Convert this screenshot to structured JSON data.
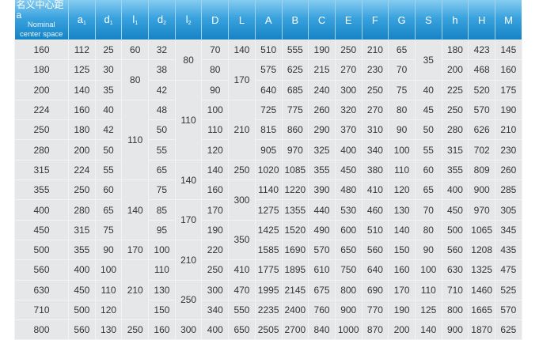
{
  "table": {
    "header": {
      "first": {
        "zh": "名义中心距a",
        "en1": "Nominal",
        "en2": "center space"
      },
      "columns": [
        {
          "base": "a",
          "sub": "1"
        },
        {
          "base": "d",
          "sub": "1"
        },
        {
          "base": "l",
          "sub": "1"
        },
        {
          "base": "d",
          "sub": "2"
        },
        {
          "base": "l",
          "sub": "2"
        },
        {
          "base": "D",
          "sub": ""
        },
        {
          "base": "L",
          "sub": ""
        },
        {
          "base": "A",
          "sub": ""
        },
        {
          "base": "B",
          "sub": ""
        },
        {
          "base": "C",
          "sub": ""
        },
        {
          "base": "E",
          "sub": ""
        },
        {
          "base": "F",
          "sub": ""
        },
        {
          "base": "G",
          "sub": ""
        },
        {
          "base": "S",
          "sub": ""
        },
        {
          "base": "h",
          "sub": ""
        },
        {
          "base": "H",
          "sub": ""
        },
        {
          "base": "M",
          "sub": ""
        }
      ]
    },
    "rows": [
      [
        "160",
        "112",
        "25",
        "60",
        "32",
        {
          "value": "80",
          "rowspan": 2
        },
        "70",
        "140",
        "510",
        "555",
        "190",
        "250",
        "210",
        "65",
        {
          "value": "35",
          "rowspan": 2
        },
        "180",
        "423",
        "145"
      ],
      [
        "180",
        "125",
        "30",
        {
          "value": "80",
          "rowspan": 2
        },
        "38",
        "80",
        {
          "value": "170",
          "rowspan": 2
        },
        "575",
        "625",
        "215",
        "270",
        "230",
        "70",
        "200",
        "468",
        "160"
      ],
      [
        "200",
        "140",
        "35",
        "42",
        {
          "value": "110",
          "rowspan": 4
        },
        "90",
        "640",
        "685",
        "240",
        "300",
        "250",
        "75",
        "40",
        "225",
        "520",
        "175"
      ],
      [
        "224",
        "160",
        "40",
        {
          "value": "110",
          "rowspan": 4
        },
        "48",
        "100",
        {
          "value": "210",
          "rowspan": 3
        },
        "725",
        "775",
        "260",
        "320",
        "270",
        "80",
        "45",
        "250",
        "570",
        "190"
      ],
      [
        "250",
        "180",
        "42",
        "50",
        "110",
        "815",
        "860",
        "290",
        "370",
        "310",
        "90",
        "50",
        "280",
        "626",
        "210"
      ],
      [
        "280",
        "200",
        "50",
        "55",
        "120",
        "905",
        "970",
        "325",
        "400",
        "340",
        "100",
        "55",
        "315",
        "702",
        "230"
      ],
      [
        "315",
        "224",
        "55",
        "65",
        {
          "value": "140",
          "rowspan": 2
        },
        "140",
        "250",
        "1020",
        "1085",
        "355",
        "450",
        "380",
        "110",
        "60",
        "355",
        "809",
        "260"
      ],
      [
        "355",
        "250",
        "60",
        {
          "value": "140",
          "rowspan": 3
        },
        "75",
        "160",
        {
          "value": "300",
          "rowspan": 2
        },
        "1140",
        "1220",
        "390",
        "480",
        "410",
        "120",
        "65",
        "400",
        "900",
        "285"
      ],
      [
        "400",
        "280",
        "65",
        "85",
        {
          "value": "170",
          "rowspan": 2
        },
        "170",
        "1275",
        "1355",
        "440",
        "530",
        "460",
        "130",
        "70",
        "450",
        "970",
        "305"
      ],
      [
        "450",
        "315",
        "75",
        "95",
        "190",
        {
          "value": "350",
          "rowspan": 2
        },
        "1425",
        "1520",
        "490",
        "600",
        "510",
        "140",
        "80",
        "500",
        "1065",
        "345"
      ],
      [
        "500",
        "355",
        "90",
        "170",
        "100",
        {
          "value": "210",
          "rowspan": 2
        },
        "220",
        "1585",
        "1690",
        "570",
        "650",
        "560",
        "150",
        "90",
        "560",
        "1208",
        "435"
      ],
      [
        "560",
        "400",
        "100",
        {
          "value": "210",
          "rowspan": 3
        },
        "110",
        "250",
        "410",
        "1775",
        "1895",
        "610",
        "750",
        "640",
        "160",
        "100",
        "630",
        "1325",
        "475"
      ],
      [
        "630",
        "450",
        "110",
        "130",
        {
          "value": "250",
          "rowspan": 2
        },
        "300",
        "470",
        "1995",
        "2145",
        "675",
        "800",
        "690",
        "170",
        "110",
        "710",
        "1460",
        "525"
      ],
      [
        "710",
        "500",
        "120",
        "150",
        "340",
        "550",
        "2235",
        "2400",
        "760",
        "900",
        "770",
        "190",
        "125",
        "800",
        "1665",
        "570"
      ],
      [
        "800",
        "560",
        "130",
        "250",
        "160",
        "300",
        "400",
        "650",
        "2505",
        "2700",
        "840",
        "1000",
        "870",
        "200",
        "140",
        "900",
        "1870",
        "625"
      ]
    ]
  }
}
